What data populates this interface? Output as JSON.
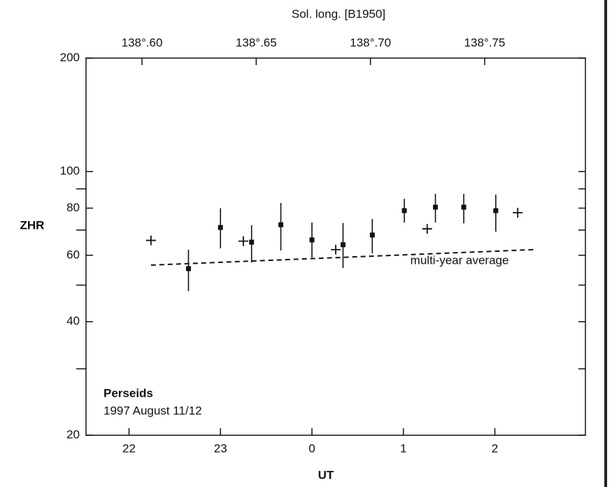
{
  "chart_data": {
    "type": "scatter",
    "title": "Sol. long. [B1950]",
    "xlabel": "UT",
    "ylabel": "ZHR",
    "log_y": true,
    "xlim": [
      21.53,
      26.99
    ],
    "xticks": [
      22,
      23,
      {
        "value": 24,
        "label": "0"
      },
      {
        "value": 25,
        "label": "1"
      },
      {
        "value": 26,
        "label": "2"
      }
    ],
    "x2lim": [
      138.5755,
      138.7941
    ],
    "x2ticks": [
      {
        "value": 138.6,
        "label": "138°.60"
      },
      {
        "value": 138.65,
        "label": "138°.65"
      },
      {
        "value": 138.7,
        "label": "138°.70"
      },
      {
        "value": 138.75,
        "label": "138°.75"
      }
    ],
    "ylim": [
      20,
      200
    ],
    "yticks": [
      20,
      40,
      60,
      80,
      100,
      200
    ],
    "yminor_ticks": [
      30,
      50,
      70,
      90
    ],
    "series": [
      {
        "marker": "square",
        "color": "#111111",
        "x": [
          22.65,
          23.0,
          23.34,
          23.66,
          24.0,
          24.34,
          24.66,
          25.01,
          25.35,
          25.66,
          26.01
        ],
        "values": [
          55.3,
          71.1,
          65.0,
          72.3,
          65.9,
          64.0,
          67.9,
          78.8,
          80.5,
          80.5,
          78.8
        ],
        "upper": [
          62.1,
          80.0,
          72.1,
          82.6,
          73.3,
          73.1,
          74.9,
          84.7,
          87.3,
          87.3,
          86.9
        ],
        "lower": [
          48.2,
          62.6,
          57.4,
          61.8,
          59.2,
          55.5,
          60.7,
          73.3,
          73.3,
          72.9,
          69.3
        ]
      },
      {
        "marker": "cross",
        "color": "#111111",
        "x": [
          22.24,
          23.25,
          24.26,
          25.26,
          26.25
        ],
        "values": [
          65.7,
          65.4,
          62.1,
          70.5,
          77.8
        ]
      },
      {
        "marker": "line",
        "name": "multi-year average",
        "dashed": true,
        "color": "#111111",
        "x": [
          22.24,
          26.42
        ],
        "values": [
          56.5,
          62.1
        ]
      }
    ],
    "annotations": [
      "Perseids",
      "1997 August 11/12"
    ]
  }
}
